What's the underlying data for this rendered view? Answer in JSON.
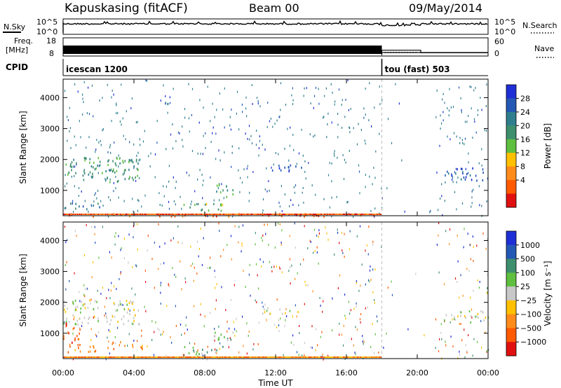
{
  "header": {
    "site": "Kapuskasing (fitACF)",
    "beam": "Beam 00",
    "date": "09/May/2014"
  },
  "top_panels": {
    "nsky_label": "N.Sky",
    "nsky_ticks": [
      "10^5",
      "10^0"
    ],
    "nsearch_label": "N.Search",
    "freq_label": "Freq.",
    "freq_unit": "[MHz]",
    "freq_ticks": [
      "18",
      "8"
    ],
    "nave_label": "Nave",
    "nave_ticks": [
      "60",
      "0"
    ],
    "cpid_label": "CPID",
    "cpid_modes": [
      {
        "name": "icescan 1200",
        "start_hour": 0
      },
      {
        "name": "tou (fast) 503",
        "start_hour": 18
      }
    ],
    "nave_steps": [
      {
        "from": 18.0,
        "to": 20.2,
        "value": 20
      },
      {
        "from": 20.2,
        "to": 24.0,
        "value": 10
      }
    ]
  },
  "colors": {
    "power": [
      "#1f2fd6",
      "#2458b5",
      "#2f7e8e",
      "#3e8f6e",
      "#5fbf3f",
      "#ffc000",
      "#ff8c1a",
      "#ff5a00",
      "#e01010"
    ],
    "velocity": [
      "#1f2fd6",
      "#2458b5",
      "#3e8f6e",
      "#5fbf3f",
      "#c8c8c8",
      "#ffc000",
      "#ff8c1a",
      "#ff5a00",
      "#e01010"
    ]
  },
  "chart_data": [
    {
      "type": "heatmap",
      "name": "power",
      "ylabel": "Slant Range [km]",
      "xlabel": "",
      "x_ticks": [
        "00:00",
        "04:00",
        "08:00",
        "12:00",
        "16:00",
        "20:00",
        "00:00"
      ],
      "x_range_hours": [
        0,
        24
      ],
      "y_ticks": [
        "1000",
        "2000",
        "3000",
        "4000"
      ],
      "y_range_km": [
        180,
        4600
      ],
      "colorbar_label": "Power [dB]",
      "colorbar_ticks": [
        "28",
        "24",
        "20",
        "16",
        "12",
        "8",
        "4"
      ],
      "blobs": [
        {
          "t0": 0.0,
          "t1": 4.3,
          "r0": 1300,
          "r1": 2100,
          "level": 3
        },
        {
          "t0": 0.1,
          "t1": 2.2,
          "r0": 420,
          "r1": 620,
          "level": 2
        },
        {
          "t0": 6.5,
          "t1": 9.0,
          "r0": 350,
          "r1": 600,
          "level": 4
        },
        {
          "t0": 8.5,
          "t1": 9.6,
          "r0": 800,
          "r1": 1250,
          "level": 3
        },
        {
          "t0": 11.2,
          "t1": 13.6,
          "r0": 1650,
          "r1": 1850,
          "level": 1
        },
        {
          "t0": 21.5,
          "t1": 24.0,
          "r0": 1350,
          "r1": 1750,
          "level": 1
        },
        {
          "t0": 0.0,
          "t1": 18.0,
          "r0": 180,
          "r1": 270,
          "level": 7
        }
      ]
    },
    {
      "type": "heatmap",
      "name": "velocity",
      "ylabel": "Slant Range [km]",
      "xlabel": "Time UT",
      "x_ticks": [
        "00:00",
        "04:00",
        "08:00",
        "12:00",
        "16:00",
        "20:00",
        "00:00"
      ],
      "x_range_hours": [
        0,
        24
      ],
      "y_ticks": [
        "1000",
        "2000",
        "3000",
        "4000"
      ],
      "y_range_km": [
        180,
        4600
      ],
      "colorbar_label": "Velocity [m s⁻¹]",
      "colorbar_ticks": [
        "1000",
        "500",
        "100",
        "25",
        "−25",
        "−100",
        "−500",
        "−1000"
      ],
      "blobs": [
        {
          "t0": 0.0,
          "t1": 4.3,
          "r0": 1300,
          "r1": 2100,
          "level": 4
        },
        {
          "t0": 0.1,
          "t1": 2.2,
          "r0": 420,
          "r1": 620,
          "level": 6
        },
        {
          "t0": 2.5,
          "t1": 4.5,
          "r0": 500,
          "r1": 750,
          "level": 6
        },
        {
          "t0": 6.5,
          "t1": 9.0,
          "r0": 350,
          "r1": 600,
          "level": 3
        },
        {
          "t0": 8.5,
          "t1": 9.6,
          "r0": 800,
          "r1": 1250,
          "level": 3
        },
        {
          "t0": 11.2,
          "t1": 13.6,
          "r0": 1650,
          "r1": 1850,
          "level": 4
        },
        {
          "t0": 21.5,
          "t1": 24.0,
          "r0": 1350,
          "r1": 1750,
          "level": 4
        },
        {
          "t0": 0.0,
          "t1": 1.0,
          "r0": 600,
          "r1": 1400,
          "level": 7
        }
      ]
    }
  ]
}
